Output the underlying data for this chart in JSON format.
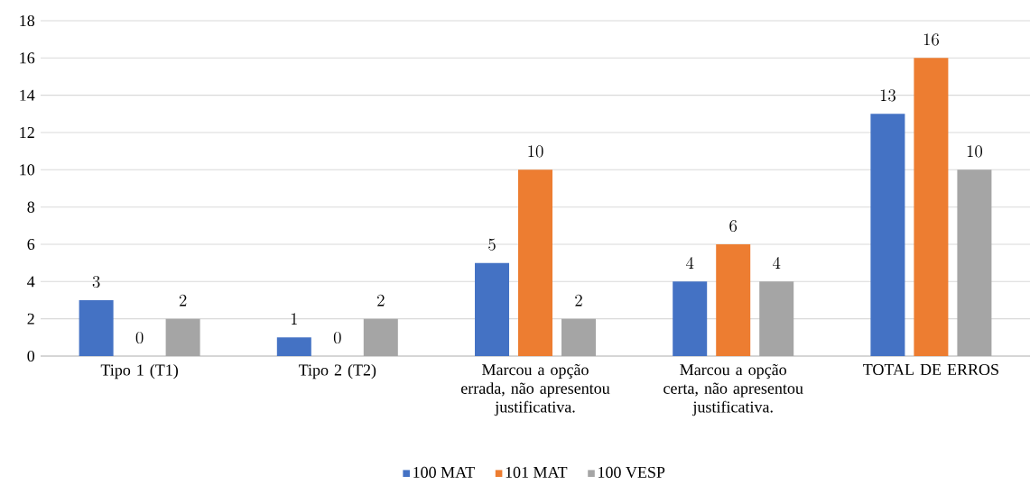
{
  "chart_data": {
    "type": "bar",
    "categories": [
      "Tipo 1 (T1)",
      "Tipo 2 (T2)",
      "Marcou a opção errada, não apresentou justificativa.",
      "Marcou a opção certa, não apresentou justificativa.",
      "TOTAL DE ERROS"
    ],
    "series": [
      {
        "name": "100 MAT",
        "color": "#4472c4",
        "values": [
          3,
          1,
          5,
          4,
          13
        ]
      },
      {
        "name": "101 MAT",
        "color": "#ed7d31",
        "values": [
          0,
          0,
          10,
          6,
          16
        ]
      },
      {
        "name": "100 VESP",
        "color": "#a5a5a5",
        "values": [
          2,
          2,
          2,
          4,
          10
        ]
      }
    ],
    "ylim": [
      0,
      18
    ],
    "yticks": [
      0,
      2,
      4,
      6,
      8,
      10,
      12,
      14,
      16,
      18
    ],
    "grid": "y",
    "legend": "bottom",
    "data_labels": true
  }
}
